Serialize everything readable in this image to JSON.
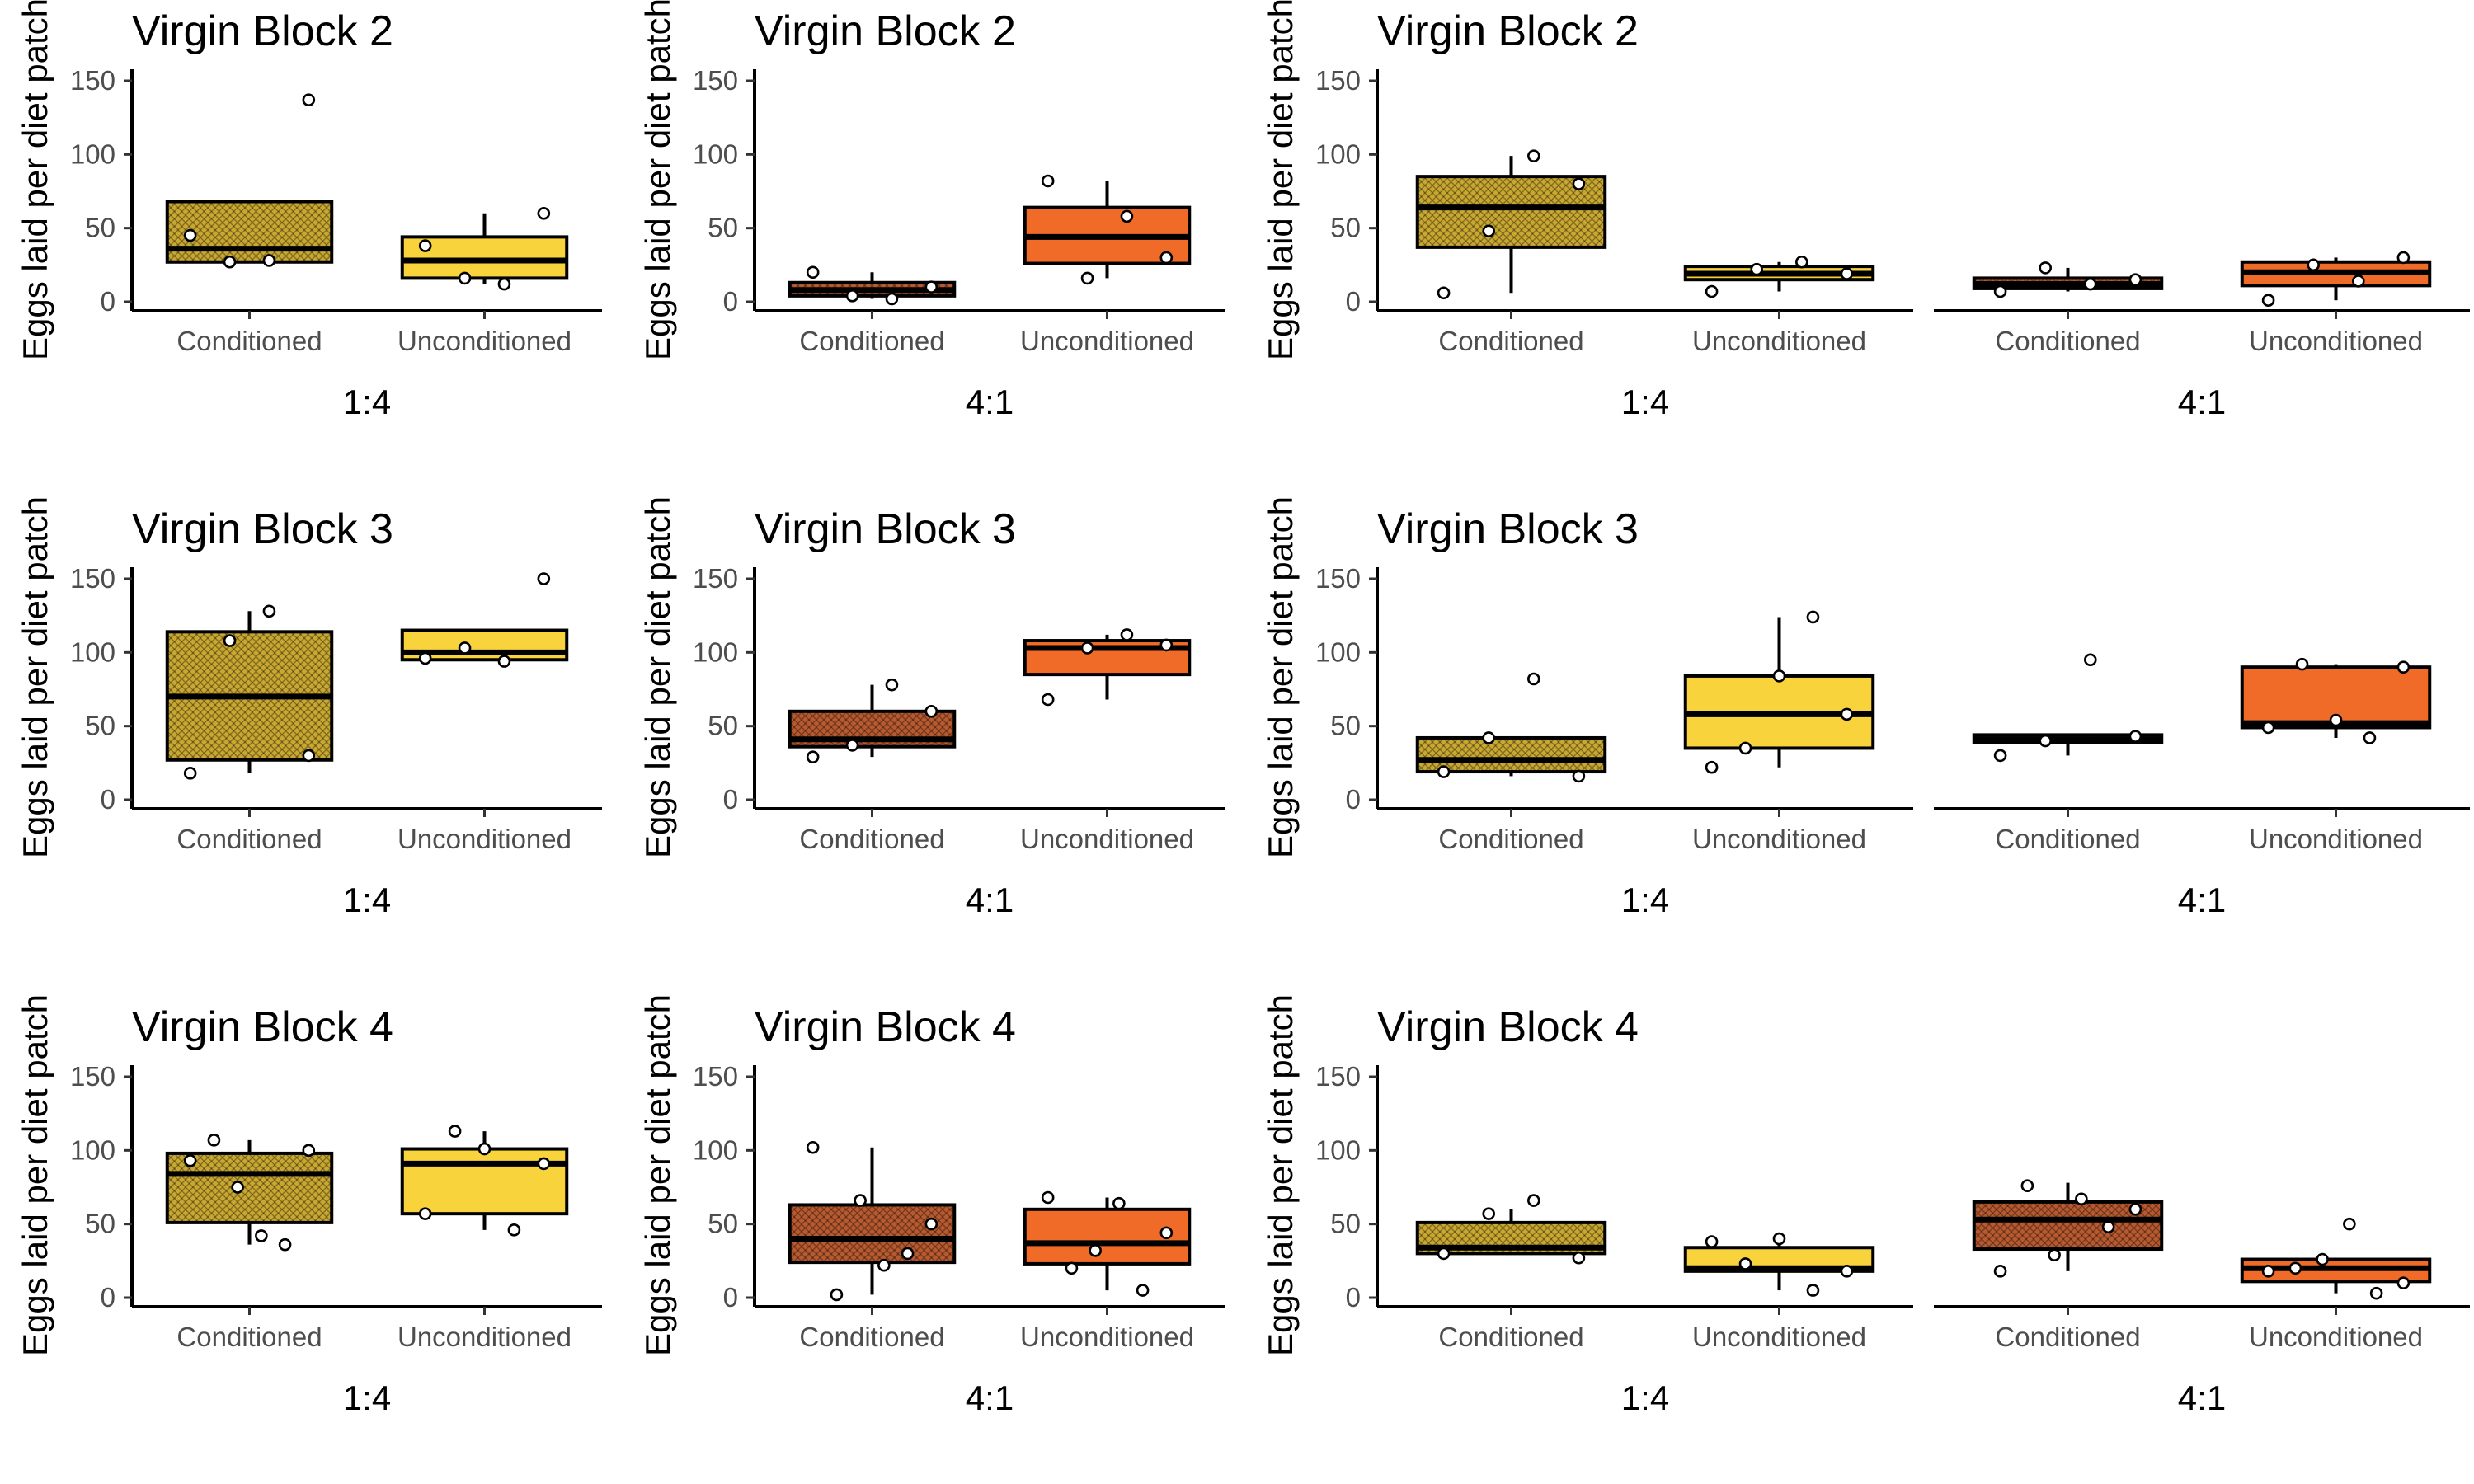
{
  "colors": {
    "gold": "#C9A832",
    "yellow": "#F9D33B",
    "rust": "#B85A30",
    "orange": "#F06A28"
  },
  "chart_data": [
    {
      "type": "box",
      "title": "Virgin Block 2",
      "ylabel": "Eggs laid per diet patch",
      "ylim": [
        0,
        150
      ],
      "yticks": [
        0,
        50,
        100,
        150
      ],
      "facets": [
        {
          "label": "1:4",
          "categories": [
            "Conditioned",
            "Unconditioned"
          ],
          "boxes": [
            {
              "category": "Conditioned",
              "q1": 27,
              "median": 36,
              "q3": 68,
              "lower": 27,
              "upper": 68,
              "fill": "gold",
              "pattern": true,
              "points": [
                45,
                27,
                28,
                137
              ]
            },
            {
              "category": "Unconditioned",
              "q1": 16,
              "median": 28,
              "q3": 44,
              "lower": 12,
              "upper": 60,
              "fill": "yellow",
              "pattern": false,
              "points": [
                38,
                16,
                12,
                60
              ]
            }
          ]
        }
      ]
    },
    {
      "type": "box",
      "title": "Virgin Block 2",
      "ylabel": "Eggs laid per diet patch",
      "ylim": [
        0,
        150
      ],
      "yticks": [
        0,
        50,
        100,
        150
      ],
      "facets": [
        {
          "label": "4:1",
          "categories": [
            "Conditioned",
            "Unconditioned"
          ],
          "boxes": [
            {
              "category": "Conditioned",
              "q1": 4,
              "median": 8,
              "q3": 13,
              "lower": 2,
              "upper": 20,
              "fill": "rust",
              "pattern": true,
              "points": [
                20,
                4,
                2,
                10
              ]
            },
            {
              "category": "Unconditioned",
              "q1": 26,
              "median": 44,
              "q3": 64,
              "lower": 16,
              "upper": 82,
              "fill": "orange",
              "pattern": false,
              "points": [
                82,
                16,
                58,
                30
              ]
            }
          ]
        }
      ]
    },
    {
      "type": "box",
      "title": "Virgin Block 2",
      "ylabel": "Eggs laid per diet patch",
      "ylim": [
        0,
        150
      ],
      "yticks": [
        0,
        50,
        100,
        150
      ],
      "facets": [
        {
          "label": "1:4",
          "categories": [
            "Conditioned",
            "Unconditioned"
          ],
          "boxes": [
            {
              "category": "Conditioned",
              "q1": 37,
              "median": 64,
              "q3": 85,
              "lower": 6,
              "upper": 99,
              "fill": "gold",
              "pattern": true,
              "points": [
                6,
                48,
                99,
                80
              ]
            },
            {
              "category": "Unconditioned",
              "q1": 15,
              "median": 19,
              "q3": 24,
              "lower": 7,
              "upper": 27,
              "fill": "yellow",
              "pattern": false,
              "points": [
                7,
                22,
                27,
                19
              ]
            }
          ]
        },
        {
          "label": "4:1",
          "categories": [
            "Conditioned",
            "Unconditioned"
          ],
          "boxes": [
            {
              "category": "Conditioned",
              "q1": 9,
              "median": 12,
              "q3": 16,
              "lower": 7,
              "upper": 23,
              "fill": "rust",
              "pattern": true,
              "points": [
                7,
                23,
                12,
                15
              ]
            },
            {
              "category": "Unconditioned",
              "q1": 11,
              "median": 20,
              "q3": 27,
              "lower": 1,
              "upper": 30,
              "fill": "orange",
              "pattern": false,
              "points": [
                1,
                25,
                14,
                30
              ]
            }
          ]
        }
      ]
    },
    {
      "type": "box",
      "title": "Virgin Block 3",
      "ylabel": "Eggs laid per diet patch",
      "ylim": [
        0,
        150
      ],
      "yticks": [
        0,
        50,
        100,
        150
      ],
      "facets": [
        {
          "label": "1:4",
          "categories": [
            "Conditioned",
            "Unconditioned"
          ],
          "boxes": [
            {
              "category": "Conditioned",
              "q1": 27,
              "median": 70,
              "q3": 114,
              "lower": 18,
              "upper": 128,
              "fill": "gold",
              "pattern": true,
              "points": [
                18,
                108,
                128,
                30
              ]
            },
            {
              "category": "Unconditioned",
              "q1": 95,
              "median": 100,
              "q3": 115,
              "lower": 94,
              "upper": 115,
              "fill": "yellow",
              "pattern": false,
              "points": [
                96,
                103,
                94,
                150
              ]
            }
          ]
        }
      ]
    },
    {
      "type": "box",
      "title": "Virgin Block 3",
      "ylabel": "Eggs laid per diet patch",
      "ylim": [
        0,
        150
      ],
      "yticks": [
        0,
        50,
        100,
        150
      ],
      "facets": [
        {
          "label": "4:1",
          "categories": [
            "Conditioned",
            "Unconditioned"
          ],
          "boxes": [
            {
              "category": "Conditioned",
              "q1": 36,
              "median": 41,
              "q3": 60,
              "lower": 29,
              "upper": 78,
              "fill": "rust",
              "pattern": true,
              "points": [
                29,
                37,
                78,
                60
              ]
            },
            {
              "category": "Unconditioned",
              "q1": 85,
              "median": 103,
              "q3": 108,
              "lower": 68,
              "upper": 112,
              "fill": "orange",
              "pattern": false,
              "points": [
                68,
                103,
                112,
                105
              ]
            }
          ]
        }
      ]
    },
    {
      "type": "box",
      "title": "Virgin Block 3",
      "ylabel": "Eggs laid per diet patch",
      "ylim": [
        0,
        150
      ],
      "yticks": [
        0,
        50,
        100,
        150
      ],
      "facets": [
        {
          "label": "1:4",
          "categories": [
            "Conditioned",
            "Unconditioned"
          ],
          "boxes": [
            {
              "category": "Conditioned",
              "q1": 19,
              "median": 27,
              "q3": 42,
              "lower": 16,
              "upper": 42,
              "fill": "gold",
              "pattern": true,
              "points": [
                19,
                42,
                82,
                16
              ]
            },
            {
              "category": "Unconditioned",
              "q1": 35,
              "median": 58,
              "q3": 84,
              "lower": 22,
              "upper": 124,
              "fill": "yellow",
              "pattern": false,
              "points": [
                22,
                35,
                84,
                124,
                58
              ]
            }
          ]
        },
        {
          "label": "4:1",
          "categories": [
            "Conditioned",
            "Unconditioned"
          ],
          "boxes": [
            {
              "category": "Conditioned",
              "q1": 39,
              "median": 41,
              "q3": 44,
              "lower": 30,
              "upper": 44,
              "fill": "rust",
              "pattern": true,
              "points": [
                30,
                40,
                95,
                43
              ]
            },
            {
              "category": "Unconditioned",
              "q1": 49,
              "median": 52,
              "q3": 90,
              "lower": 42,
              "upper": 92,
              "fill": "orange",
              "pattern": false,
              "points": [
                49,
                92,
                54,
                42,
                90
              ]
            }
          ]
        }
      ]
    },
    {
      "type": "box",
      "title": "Virgin Block 4",
      "ylabel": "Eggs laid per diet patch",
      "ylim": [
        0,
        150
      ],
      "yticks": [
        0,
        50,
        100,
        150
      ],
      "facets": [
        {
          "label": "1:4",
          "categories": [
            "Conditioned",
            "Unconditioned"
          ],
          "boxes": [
            {
              "category": "Conditioned",
              "q1": 51,
              "median": 84,
              "q3": 98,
              "lower": 36,
              "upper": 107,
              "fill": "gold",
              "pattern": true,
              "points": [
                93,
                107,
                75,
                42,
                36,
                100
              ]
            },
            {
              "category": "Unconditioned",
              "q1": 57,
              "median": 91,
              "q3": 101,
              "lower": 46,
              "upper": 113,
              "fill": "yellow",
              "pattern": false,
              "points": [
                57,
                113,
                101,
                46,
                91
              ]
            }
          ]
        }
      ]
    },
    {
      "type": "box",
      "title": "Virgin Block 4",
      "ylabel": "Eggs laid per diet patch",
      "ylim": [
        0,
        150
      ],
      "yticks": [
        0,
        50,
        100,
        150
      ],
      "facets": [
        {
          "label": "4:1",
          "categories": [
            "Conditioned",
            "Unconditioned"
          ],
          "boxes": [
            {
              "category": "Conditioned",
              "q1": 24,
              "median": 40,
              "q3": 63,
              "lower": 2,
              "upper": 102,
              "fill": "rust",
              "pattern": true,
              "points": [
                102,
                2,
                66,
                22,
                30,
                50
              ]
            },
            {
              "category": "Unconditioned",
              "q1": 23,
              "median": 37,
              "q3": 60,
              "lower": 5,
              "upper": 68,
              "fill": "orange",
              "pattern": false,
              "points": [
                68,
                20,
                32,
                64,
                5,
                44
              ]
            }
          ]
        }
      ]
    },
    {
      "type": "box",
      "title": "Virgin Block 4",
      "ylabel": "Eggs laid per diet patch",
      "ylim": [
        0,
        150
      ],
      "yticks": [
        0,
        50,
        100,
        150
      ],
      "facets": [
        {
          "label": "1:4",
          "categories": [
            "Conditioned",
            "Unconditioned"
          ],
          "boxes": [
            {
              "category": "Conditioned",
              "q1": 30,
              "median": 34,
              "q3": 51,
              "lower": 30,
              "upper": 60,
              "fill": "gold",
              "pattern": true,
              "points": [
                30,
                57,
                66,
                27
              ]
            },
            {
              "category": "Unconditioned",
              "q1": 18,
              "median": 20,
              "q3": 34,
              "lower": 5,
              "upper": 40,
              "fill": "yellow",
              "pattern": false,
              "points": [
                38,
                23,
                40,
                5,
                18
              ]
            }
          ]
        },
        {
          "label": "4:1",
          "categories": [
            "Conditioned",
            "Unconditioned"
          ],
          "boxes": [
            {
              "category": "Conditioned",
              "q1": 33,
              "median": 53,
              "q3": 65,
              "lower": 18,
              "upper": 78,
              "fill": "rust",
              "pattern": true,
              "points": [
                18,
                76,
                29,
                67,
                48,
                60
              ]
            },
            {
              "category": "Unconditioned",
              "q1": 11,
              "median": 20,
              "q3": 26,
              "lower": 3,
              "upper": 26,
              "fill": "orange",
              "pattern": false,
              "points": [
                18,
                20,
                26,
                50,
                3,
                10
              ]
            }
          ]
        }
      ]
    }
  ]
}
